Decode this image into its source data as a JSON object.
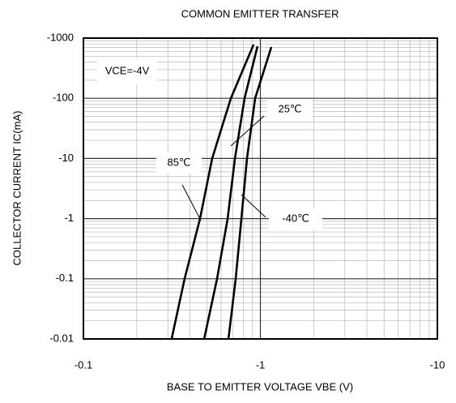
{
  "chart_data": {
    "type": "line",
    "title": "COMMON EMITTER TRANSFER",
    "x_label": "BASE TO EMITTER VOLTAGE VBE (V)",
    "y_label": "COLLECTOR CURRENT IC(mA)",
    "annotation": "VCE=-4V",
    "xscale": "log",
    "yscale": "log",
    "grid": true,
    "minor_grid": true,
    "xlim": [
      -0.1,
      -10
    ],
    "xticks": [
      -0.1,
      -1,
      -10
    ],
    "ylim": [
      -0.01,
      -1000
    ],
    "yticks": [
      -1000,
      -100,
      -10,
      -1,
      -0.1,
      -0.01
    ],
    "series": [
      {
        "name": "85℃",
        "color": "#000000",
        "x": [
          -0.315,
          -0.373,
          -0.456,
          -0.534,
          -0.681,
          -0.915
        ],
        "values": [
          -0.01,
          -0.1,
          -1,
          -10,
          -100,
          -780
        ]
      },
      {
        "name": "25℃",
        "color": "#000000",
        "x": [
          -0.481,
          -0.569,
          -0.653,
          -0.718,
          -0.814,
          -0.963
        ],
        "values": [
          -0.01,
          -0.1,
          -1,
          -10,
          -100,
          -733
        ]
      },
      {
        "name": "-40℃",
        "color": "#000000",
        "x": [
          -0.66,
          -0.725,
          -0.781,
          -0.84,
          -0.934,
          -1.153
        ],
        "values": [
          -0.01,
          -0.1,
          -1,
          -10,
          -100,
          -710
        ]
      }
    ]
  }
}
